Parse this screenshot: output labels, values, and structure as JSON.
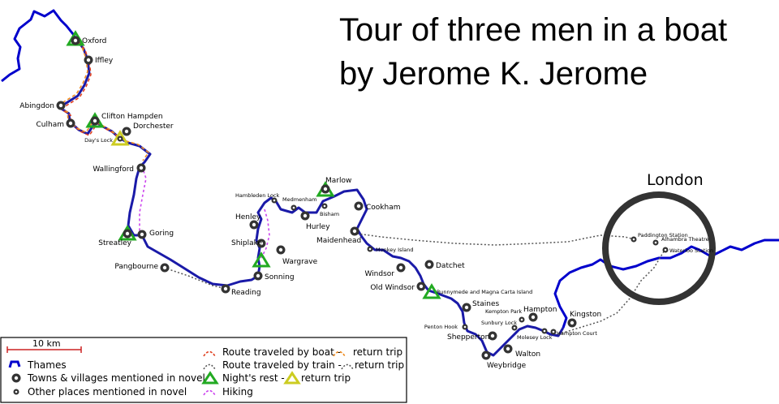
{
  "title": {
    "line1": "Tour of three men in a boat",
    "line2": "by Jerome K. Jerome"
  },
  "london_label": "London",
  "scale": {
    "label": "10 km"
  },
  "legend": {
    "thames": "Thames",
    "towns": "Towns & villages mentioned in novel",
    "other": "Other places mentioned in novel",
    "boat": "Route traveled by boat -",
    "boat_return": "return trip",
    "train": "Route traveled by train -",
    "train_return": "return trip",
    "rest": "Night's rest -",
    "rest_return": "return trip",
    "hiking": "Hiking"
  },
  "colors": {
    "thames": "#0000cc",
    "route": "#7a2a9a",
    "boat": "#e04020",
    "boat_return": "#f08c20",
    "rest": "#22aa22",
    "rest_return": "#cccc22",
    "hiking": "#cc44ee",
    "train": "#555555"
  },
  "places": {
    "oxford": "Oxford",
    "iffley": "Iffley",
    "abingdon": "Abingdon",
    "culham": "Culham",
    "clifton_hampden": "Clifton Hampden",
    "dorchester": "Dorchester",
    "days_lock": "Day's Lock",
    "wallingford": "Wallingford",
    "streatley": "Streatley",
    "goring": "Goring",
    "pangbourne": "Pangbourne",
    "reading": "Reading",
    "sonning": "Sonning",
    "wargrave": "Wargrave",
    "shiplake": "Shiplake",
    "henley": "Henley",
    "hambleden_lock": "Hambleden Lock",
    "medmenham": "Medmenham",
    "bisham": "Bisham",
    "hurley": "Hurley",
    "marlow": "Marlow",
    "cookham": "Cookham",
    "maidenhead": "Maidenhead",
    "monkey_island": "Monkey Island",
    "windsor": "Windsor",
    "datchet": "Datchet",
    "old_windsor": "Old Windsor",
    "runnymede": "Runnymede and Magna Carta Island",
    "staines": "Staines",
    "penton_hook": "Penton Hook",
    "kempton_park": "Kempton Park",
    "hampton": "Hampton",
    "sunbury_lock": "Sunbury Lock",
    "shepperton": "Shepperton",
    "molesey_lock": "Molesey Lock",
    "hampton_court": "Hampton Court",
    "kingston": "Kingston",
    "walton": "Walton",
    "weybridge": "Weybridge",
    "paddington": "Paddington Station",
    "alhambra": "Alhambra Theatre",
    "waterloo": "Waterloo Station"
  }
}
